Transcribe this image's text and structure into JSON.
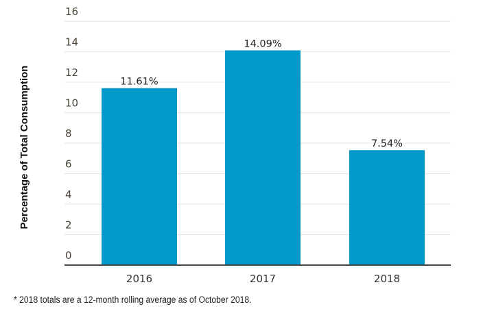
{
  "chart_data": {
    "type": "bar",
    "title": "",
    "xlabel": "",
    "ylabel": "Percentage of Total Consumption",
    "categories": [
      "2016",
      "2017",
      "2018"
    ],
    "values": [
      11.61,
      14.09,
      7.54
    ],
    "data_labels": [
      "11.61%",
      "14.09%",
      "7.54%"
    ],
    "ylim": [
      0,
      16
    ],
    "yticks": [
      0,
      2,
      4,
      6,
      8,
      10,
      12,
      14,
      16
    ],
    "grid": true,
    "bar_color": "#0099c9",
    "footnote": "* 2018 totals are a 12-month rolling average as of October 2018."
  }
}
